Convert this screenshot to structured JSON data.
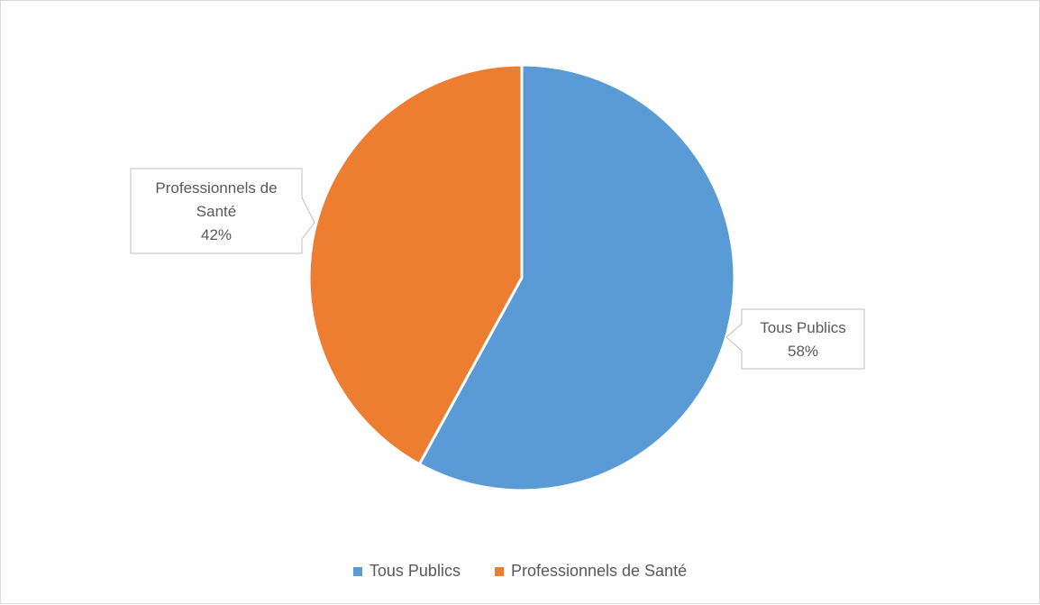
{
  "chart_data": {
    "type": "pie",
    "categories": [
      "Tous Publics",
      "Professionnels de Santé"
    ],
    "values": [
      58,
      42
    ],
    "colors": [
      "#5b9bd5",
      "#ed7d31"
    ],
    "start_angle_deg": 0,
    "direction": "clockwise",
    "data_labels": [
      {
        "lines": [
          "Tous Publics"
        ],
        "value": "58%"
      },
      {
        "lines": [
          "Professionnels de",
          "Santé"
        ],
        "value": "42%"
      }
    ],
    "legend": {
      "position": "bottom"
    }
  }
}
